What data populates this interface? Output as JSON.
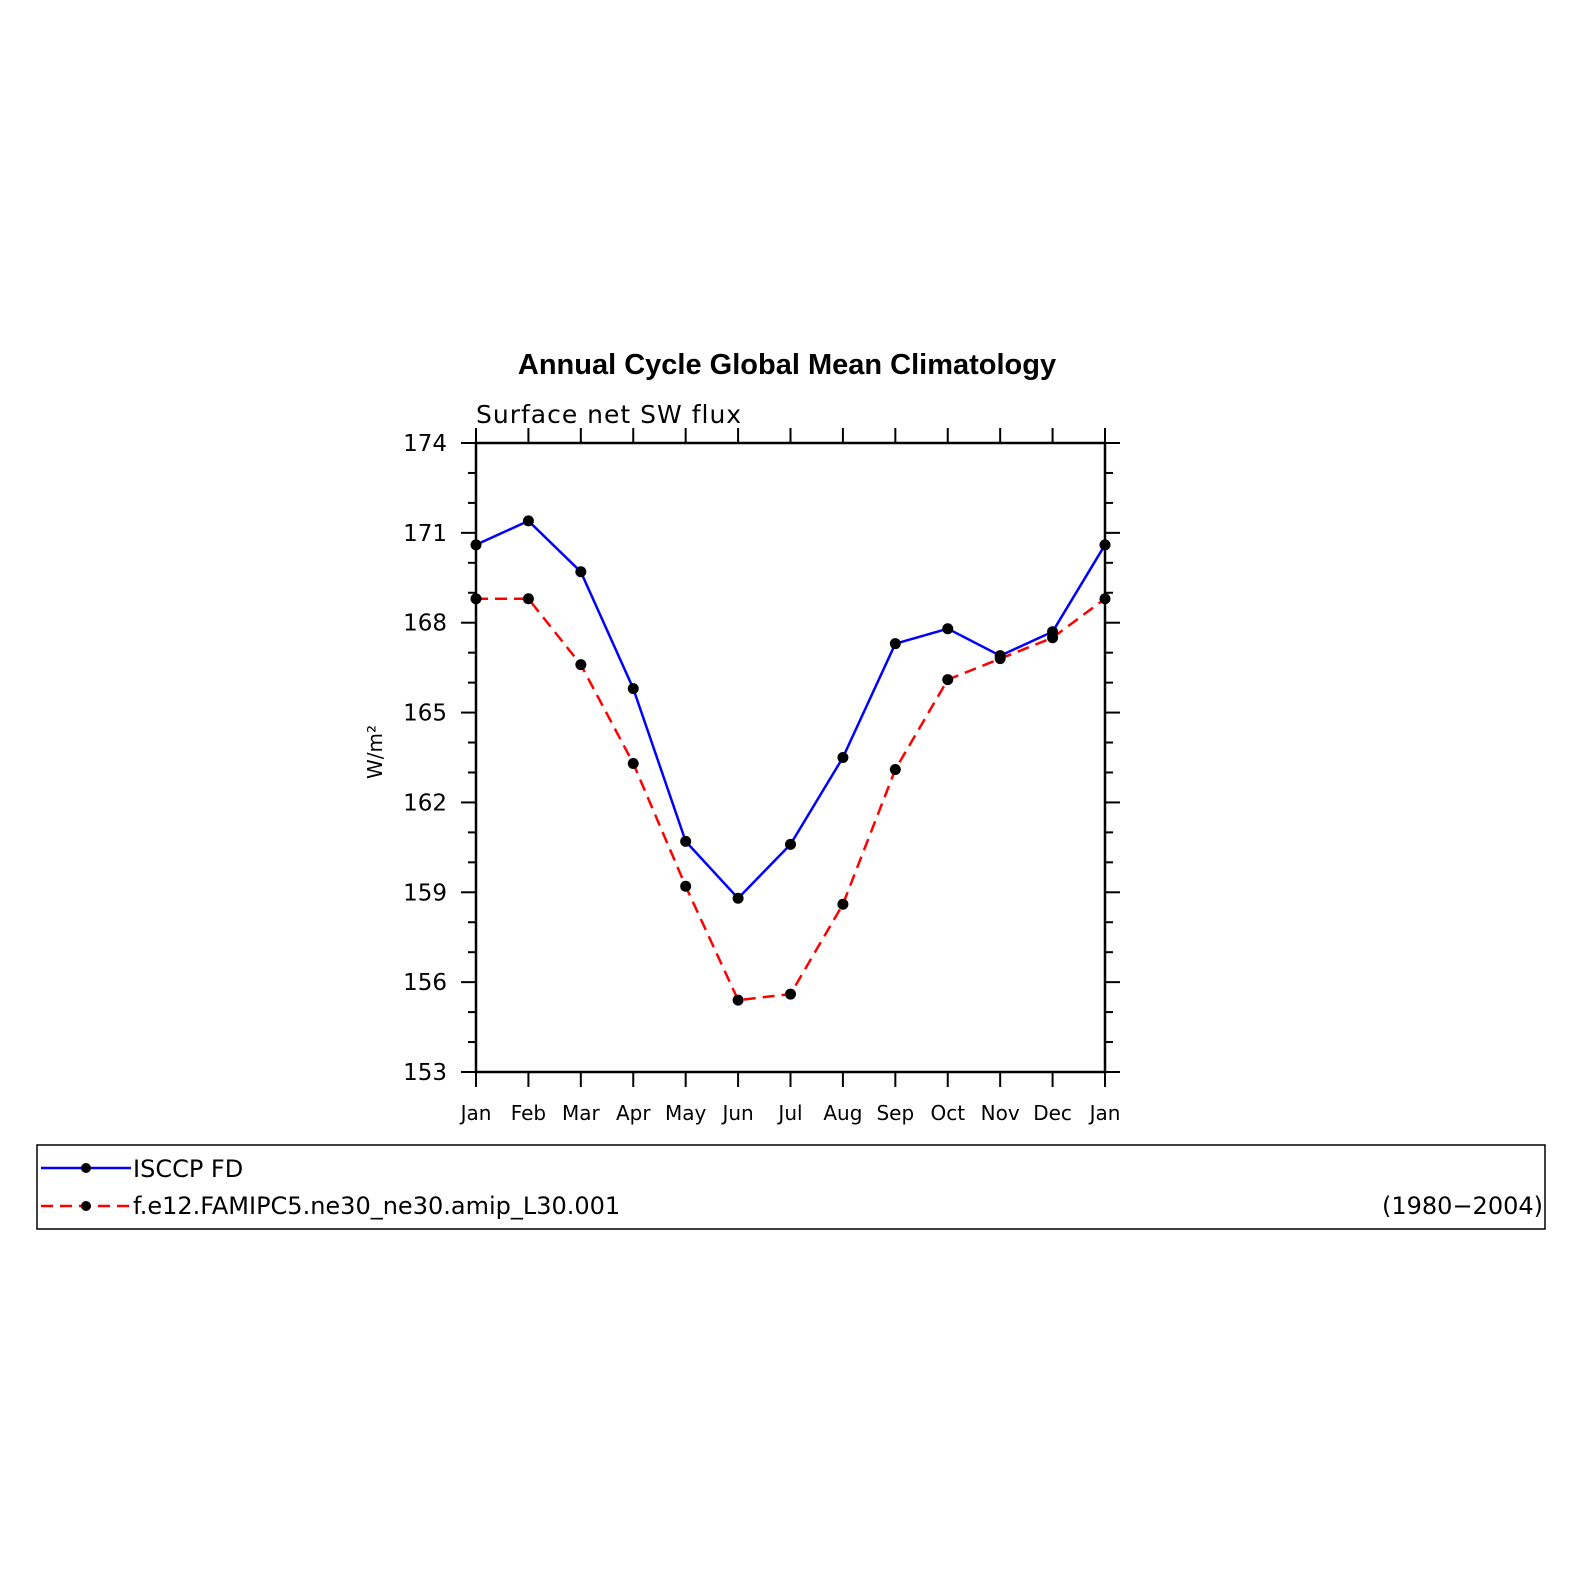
{
  "chart_data": {
    "type": "line",
    "title": "Annual Cycle Global Mean Climatology",
    "subtitle": "Surface net SW flux",
    "ylabel": "W/m²",
    "xlabel": "",
    "categories": [
      "Jan",
      "Feb",
      "Mar",
      "Apr",
      "May",
      "Jun",
      "Jul",
      "Aug",
      "Sep",
      "Oct",
      "Nov",
      "Dec",
      "Jan"
    ],
    "ylim": [
      153,
      174
    ],
    "yticks": [
      "174",
      "171",
      "168",
      "165",
      "162",
      "159",
      "156",
      "153"
    ],
    "series": [
      {
        "name": "ISCCP FD",
        "color": "#0000ff",
        "dash": "solid",
        "marker": "circle",
        "values": [
          170.6,
          171.4,
          169.7,
          165.8,
          160.7,
          158.8,
          160.6,
          163.5,
          167.3,
          167.8,
          166.9,
          167.7,
          170.6
        ]
      },
      {
        "name": "f.e12.FAMIPC5.ne30_ne30.amip_L30.001",
        "color": "#ff0000",
        "dash": "dashed",
        "marker": "circle",
        "values": [
          168.8,
          168.8,
          166.6,
          163.3,
          159.2,
          155.4,
          155.6,
          158.6,
          163.1,
          166.1,
          166.8,
          167.5,
          168.8
        ]
      }
    ],
    "legend": {
      "placement": "bottom",
      "period": "(1980−2004)"
    },
    "grid": false
  }
}
